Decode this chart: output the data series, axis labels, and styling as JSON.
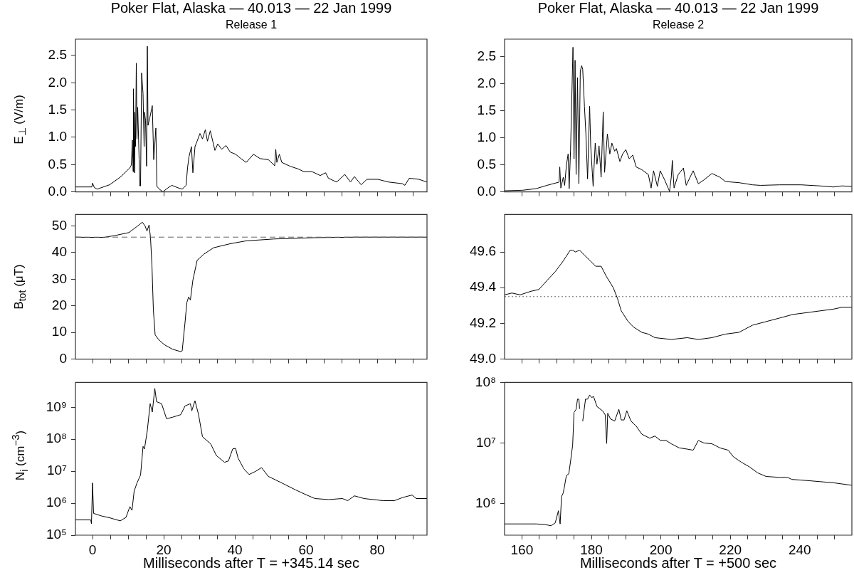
{
  "chart_data": [
    {
      "type": "line",
      "title": "Poker Flat, Alaska — 40.013 — 22 Jan 1999",
      "subtitle": "Release 1",
      "ylabel": "E$_{⊥}$ (V/m)",
      "color": "#000000",
      "marker": "none",
      "line_style": "solid",
      "grid": false,
      "tick_labels": "y",
      "xlim": [
        -4.8,
        94
      ],
      "xticks": [
        {
          "value": 0,
          "label": null
        },
        {
          "value": 5,
          "label": null
        },
        {
          "value": 10,
          "label": null
        },
        {
          "value": 15,
          "label": null
        },
        {
          "value": 20,
          "label": null
        },
        {
          "value": 25,
          "label": null
        },
        {
          "value": 30,
          "label": null
        },
        {
          "value": 35,
          "label": null
        },
        {
          "value": 40,
          "label": null
        },
        {
          "value": 45,
          "label": null
        },
        {
          "value": 50,
          "label": null
        },
        {
          "value": 55,
          "label": null
        },
        {
          "value": 60,
          "label": null
        },
        {
          "value": 65,
          "label": null
        },
        {
          "value": 70,
          "label": null
        },
        {
          "value": 75,
          "label": null
        },
        {
          "value": 80,
          "label": null
        },
        {
          "value": 85,
          "label": null
        },
        {
          "value": 90,
          "label": null
        }
      ],
      "ylim": [
        0,
        2.8
      ],
      "yticks": [
        {
          "value": 0,
          "label": "0.0"
        },
        0.5,
        {
          "value": 1,
          "label": "1.0"
        },
        1.5,
        {
          "value": 2,
          "label": "2.0"
        },
        2.5
      ],
      "x": [
        -4.8,
        -0.2,
        0,
        0.5,
        1.3,
        4.8,
        7.8,
        10.5,
        10.9,
        11.2,
        11.4,
        11.5,
        11.8,
        11.9,
        12.1,
        12.3,
        12.5,
        12.7,
        13.1,
        13.3,
        13.5,
        13.8,
        14.2,
        14.5,
        14.6,
        14.9,
        15.2,
        15.4,
        15.6,
        16.1,
        16.8,
        17.2,
        17.8,
        18.1,
        18.8,
        19.8,
        20.9,
        22.3,
        23.8,
        25.2,
        26.3,
        26.7,
        27.1,
        27.8,
        28.2,
        28.8,
        29.4,
        30.2,
        30.9,
        31.7,
        32.3,
        33.1,
        34.4,
        35.2,
        36.3,
        37.5,
        38.7,
        40.2,
        41.7,
        43.2,
        45.2,
        47.1,
        49.4,
        51.2,
        51.5,
        51.8,
        52.5,
        53.2,
        55.5,
        57.8,
        59.4,
        61.7,
        64,
        65.5,
        66.3,
        68.6,
        70.9,
        72.5,
        73.6,
        75.5,
        77.1,
        80.2,
        83.2,
        87.1,
        87.8,
        89,
        91.7,
        94
      ],
      "values": [
        0.09,
        0.09,
        0.16,
        0.08,
        0.05,
        0.13,
        0.27,
        0.44,
        0.49,
        0.95,
        0.37,
        1.89,
        0.35,
        1.46,
        0.83,
        2.36,
        0.97,
        1.55,
        0.59,
        0.11,
        0.11,
        2.18,
        1.8,
        0.83,
        1.46,
        1.31,
        0.47,
        2.67,
        1.22,
        1.36,
        1.58,
        0.59,
        1.17,
        0.1,
        0.05,
        0,
        0.06,
        0.12,
        0.08,
        0.05,
        0.12,
        0.44,
        0.64,
        0.83,
        0.35,
        0.83,
        0.93,
        1.07,
        0.97,
        1.14,
        0.93,
        1.12,
        0.76,
        0.88,
        0.78,
        0.85,
        0.73,
        0.69,
        0.61,
        0.54,
        0.69,
        0.61,
        0.59,
        0.48,
        0.78,
        0.54,
        0.69,
        0.54,
        0.47,
        0.42,
        0.37,
        0.37,
        0.3,
        0.35,
        0.25,
        0.18,
        0.32,
        0.18,
        0.28,
        0.13,
        0.23,
        0.23,
        0.18,
        0.15,
        0.12,
        0.25,
        0.23,
        0.18
      ]
    },
    {
      "type": "line",
      "title": "Poker Flat, Alaska — 40.013 — 22 Jan 1999",
      "subtitle": "Release 2",
      "color": "#000000",
      "marker": "none",
      "line_style": "solid",
      "grid": false,
      "tick_labels": "y",
      "xlim": [
        155,
        255
      ],
      "xticks": [
        {
          "value": 160,
          "label": null
        },
        {
          "value": 165,
          "label": null
        },
        {
          "value": 170,
          "label": null
        },
        {
          "value": 175,
          "label": null
        },
        {
          "value": 180,
          "label": null
        },
        {
          "value": 185,
          "label": null
        },
        {
          "value": 190,
          "label": null
        },
        {
          "value": 195,
          "label": null
        },
        {
          "value": 200,
          "label": null
        },
        {
          "value": 205,
          "label": null
        },
        {
          "value": 210,
          "label": null
        },
        {
          "value": 215,
          "label": null
        },
        {
          "value": 220,
          "label": null
        },
        {
          "value": 225,
          "label": null
        },
        {
          "value": 230,
          "label": null
        },
        {
          "value": 235,
          "label": null
        },
        {
          "value": 240,
          "label": null
        },
        {
          "value": 245,
          "label": null
        },
        {
          "value": 250,
          "label": null
        }
      ],
      "ylim": [
        0,
        2.82
      ],
      "yticks": [
        {
          "value": 0,
          "label": "0.0"
        },
        0.5,
        {
          "value": 1,
          "label": "1.0"
        },
        1.5,
        {
          "value": 2,
          "label": "2.0"
        },
        2.5
      ],
      "x": [
        155,
        160.2,
        164.1,
        167.2,
        170.7,
        170.9,
        171.2,
        171.9,
        172.3,
        172.8,
        173.3,
        173.6,
        174,
        174.7,
        175,
        175.3,
        175.6,
        176,
        176.4,
        176.8,
        177.2,
        177.5,
        178,
        178.4,
        178.9,
        179.5,
        179.8,
        180.5,
        181.1,
        181.6,
        182.2,
        182.8,
        183.4,
        183.8,
        184.6,
        185.3,
        185.9,
        186.7,
        187.2,
        188.2,
        189,
        189.9,
        190.9,
        191.9,
        192.9,
        194.5,
        196.4,
        197.2,
        197.9,
        199,
        199.8,
        201.1,
        202.1,
        202.5,
        203,
        203.3,
        203.8,
        205,
        206.5,
        207.3,
        209.3,
        210.8,
        212.4,
        214.7,
        217,
        218.6,
        222.5,
        226.4,
        228.7,
        234.2,
        240.4,
        245.8,
        249.7,
        252.1,
        255
      ],
      "values": [
        0.02,
        0.03,
        0.06,
        0.12,
        0.18,
        0.46,
        0.07,
        0.27,
        0.12,
        0.49,
        0.7,
        0.06,
        0.78,
        2.67,
        0.61,
        2.43,
        0.32,
        2.11,
        0.15,
        2.23,
        2.33,
        2.26,
        1.58,
        1.09,
        0.24,
        1.58,
        0.85,
        0.1,
        0.9,
        0.51,
        0.85,
        0.27,
        1.48,
        0.36,
        1.07,
        0.7,
        0.9,
        0.75,
        0.8,
        0.56,
        0.7,
        0.78,
        0.61,
        0.68,
        0.46,
        0.41,
        0.32,
        0.07,
        0.39,
        0.1,
        0.39,
        0.22,
        0.07,
        0.01,
        0.27,
        0.58,
        0.07,
        0.32,
        0.44,
        0.12,
        0.39,
        0.15,
        0.22,
        0.34,
        0.27,
        0.19,
        0.17,
        0.13,
        0.12,
        0.13,
        0.13,
        0.11,
        0.09,
        0.11,
        0.1
      ]
    },
    {
      "type": "line",
      "ylabel": "B$_{tot}$ (μT)",
      "color": "#000000",
      "marker": "none",
      "line_style": "solid",
      "grid": false,
      "tick_labels": "y",
      "xlim": [
        -4.8,
        94
      ],
      "xticks": [
        {
          "value": 0,
          "label": null
        },
        {
          "value": 5,
          "label": null
        },
        {
          "value": 10,
          "label": null
        },
        {
          "value": 15,
          "label": null
        },
        {
          "value": 20,
          "label": null
        },
        {
          "value": 25,
          "label": null
        },
        {
          "value": 30,
          "label": null
        },
        {
          "value": 35,
          "label": null
        },
        {
          "value": 40,
          "label": null
        },
        {
          "value": 45,
          "label": null
        },
        {
          "value": 50,
          "label": null
        },
        {
          "value": 55,
          "label": null
        },
        {
          "value": 60,
          "label": null
        },
        {
          "value": 65,
          "label": null
        },
        {
          "value": 70,
          "label": null
        },
        {
          "value": 75,
          "label": null
        },
        {
          "value": 80,
          "label": null
        },
        {
          "value": 85,
          "label": null
        },
        {
          "value": 90,
          "label": null
        }
      ],
      "ylim": [
        0,
        54.3
      ],
      "yticks": [
        0,
        10,
        20,
        30,
        40,
        50
      ],
      "ref_lines": [
        {
          "axis": "y",
          "value": 45.8,
          "color": "#666666",
          "line_style": "dashed"
        }
      ],
      "x": [
        -4.8,
        0.2,
        3.2,
        6.3,
        10.2,
        12.5,
        14,
        14.8,
        15.3,
        15.9,
        16.3,
        16.7,
        17.1,
        17.6,
        18.6,
        20.2,
        22.5,
        24.8,
        25.2,
        26,
        26.5,
        27,
        27.5,
        28.2,
        29.4,
        31.3,
        34,
        38.6,
        43.2,
        50.9,
        62.5,
        74,
        94
      ],
      "values": [
        45.8,
        45.7,
        45.7,
        46.4,
        47.5,
        49.8,
        51.4,
        49.9,
        48.1,
        50.4,
        45.5,
        35.2,
        18.5,
        9.1,
        7.3,
        5.4,
        3.7,
        2.8,
        3.1,
        13.8,
        21.2,
        23.3,
        22.2,
        29.6,
        37.1,
        39.4,
        41.8,
        43.3,
        44.4,
        45.1,
        45.6,
        45.8,
        45.8
      ]
    },
    {
      "type": "line",
      "color": "#000000",
      "marker": "none",
      "line_style": "solid",
      "grid": false,
      "tick_labels": "y",
      "xlim": [
        155,
        255
      ],
      "xticks": [
        {
          "value": 160,
          "label": null
        },
        {
          "value": 165,
          "label": null
        },
        {
          "value": 170,
          "label": null
        },
        {
          "value": 175,
          "label": null
        },
        {
          "value": 180,
          "label": null
        },
        {
          "value": 185,
          "label": null
        },
        {
          "value": 190,
          "label": null
        },
        {
          "value": 195,
          "label": null
        },
        {
          "value": 200,
          "label": null
        },
        {
          "value": 205,
          "label": null
        },
        {
          "value": 210,
          "label": null
        },
        {
          "value": 215,
          "label": null
        },
        {
          "value": 220,
          "label": null
        },
        {
          "value": 225,
          "label": null
        },
        {
          "value": 230,
          "label": null
        },
        {
          "value": 235,
          "label": null
        },
        {
          "value": 240,
          "label": null
        },
        {
          "value": 245,
          "label": null
        },
        {
          "value": 250,
          "label": null
        }
      ],
      "ylim": [
        49.0,
        49.81
      ],
      "yticks": [
        {
          "value": 49,
          "label": "49.0"
        },
        49.2,
        49.4,
        49.6
      ],
      "ref_lines": [
        {
          "axis": "y",
          "value": 49.35,
          "color": "#666666",
          "line_style": "dotted"
        }
      ],
      "x": [
        155,
        157.1,
        159.5,
        162.6,
        164.9,
        167.2,
        169.6,
        171.9,
        173.9,
        174.6,
        175.4,
        176.6,
        178.1,
        179.7,
        181.2,
        182.8,
        184.4,
        186.3,
        187.5,
        188.6,
        190.6,
        192.1,
        194.5,
        196.4,
        198.3,
        203,
        207.6,
        210.8,
        214.7,
        218.6,
        222.5,
        226.4,
        230.3,
        234.2,
        238,
        241.9,
        245.8,
        249.7,
        252.1,
        255
      ],
      "values": [
        49.36,
        49.37,
        49.36,
        49.38,
        49.39,
        49.44,
        49.49,
        49.55,
        49.61,
        49.61,
        49.6,
        49.61,
        49.58,
        49.55,
        49.52,
        49.52,
        49.46,
        49.4,
        49.34,
        49.27,
        49.21,
        49.18,
        49.15,
        49.14,
        49.12,
        49.11,
        49.12,
        49.11,
        49.12,
        49.14,
        49.15,
        49.19,
        49.21,
        49.23,
        49.25,
        49.26,
        49.27,
        49.28,
        49.29,
        49.29
      ]
    },
    {
      "type": "line",
      "ylabel": "N$_{i}$ (cm$^{−3}$)",
      "xlabel": "Milliseconds after T = +345.14 sec",
      "color": "#000000",
      "marker": "none",
      "line_style": "solid",
      "grid": false,
      "log": "y",
      "xlim": [
        -4.8,
        94
      ],
      "xticks": [
        0,
        {
          "value": 5,
          "label": null
        },
        {
          "value": 10,
          "label": null
        },
        {
          "value": 15,
          "label": null
        },
        20,
        {
          "value": 25,
          "label": null
        },
        {
          "value": 30,
          "label": null
        },
        {
          "value": 35,
          "label": null
        },
        40,
        {
          "value": 45,
          "label": null
        },
        {
          "value": 50,
          "label": null
        },
        {
          "value": 55,
          "label": null
        },
        60,
        {
          "value": 65,
          "label": null
        },
        {
          "value": 70,
          "label": null
        },
        {
          "value": 75,
          "label": null
        },
        80,
        {
          "value": 85,
          "label": null
        },
        {
          "value": 90,
          "label": null
        }
      ],
      "ylim": [
        100000,
        6000000000
      ],
      "yticks": [
        {
          "value": 100000,
          "label": "10⁵"
        },
        {
          "value": 1000000,
          "label": "10⁶"
        },
        {
          "value": 10000000,
          "label": "10⁷"
        },
        {
          "value": 100000000,
          "label": "10⁸"
        },
        {
          "value": 1000000000,
          "label": "10⁹"
        }
      ],
      "x": [
        -4.8,
        -0.5,
        -0.3,
        0,
        0.3,
        2.5,
        4.8,
        7.8,
        9.4,
        10.5,
        11.1,
        11.7,
        12.5,
        13.5,
        14.2,
        14.6,
        15.4,
        16.2,
        16.8,
        17.5,
        18,
        19.4,
        20.8,
        22.5,
        24.8,
        26,
        27.5,
        27.9,
        28.8,
        29.8,
        30.9,
        33.2,
        34.8,
        37.1,
        38.2,
        39.4,
        40.2,
        40.9,
        42.5,
        44,
        45.9,
        47.5,
        49.4,
        53.2,
        57.1,
        60.2,
        62.5,
        66.3,
        70.2,
        71.7,
        73.6,
        76.3,
        81.7,
        84.8,
        87.1,
        89.8,
        91,
        94
      ],
      "values": [
        300000,
        300000,
        230000,
        4300000,
        480000,
        400000,
        350000,
        280000,
        360000,
        780000,
        600000,
        2400000,
        4300000,
        7600000,
        60000000,
        50000000,
        190000000,
        1300000000,
        710000000,
        3900000000,
        1500000000,
        1300000000,
        440000000,
        490000000,
        590000000,
        1100000000,
        1300000000,
        780000000,
        1600000000,
        590000000,
        120000000,
        72000000,
        31000000,
        19000000,
        21000000,
        50000000,
        52000000,
        26000000,
        12000000,
        7900000,
        10000000,
        13000000,
        6900000,
        4300000,
        2600000,
        1800000,
        1400000,
        1300000,
        1400000,
        1200000,
        1700000,
        1400000,
        1200000,
        1200000,
        1500000,
        1800000,
        1400000,
        1400000
      ]
    },
    {
      "type": "line",
      "xlabel": "Milliseconds after T = +500 sec",
      "color": "#000000",
      "marker": "none",
      "line_style": "solid",
      "grid": false,
      "log": "y",
      "xlim": [
        155,
        255
      ],
      "xticks": [
        160,
        {
          "value": 165,
          "label": null
        },
        {
          "value": 170,
          "label": null
        },
        {
          "value": 175,
          "label": null
        },
        180,
        {
          "value": 185,
          "label": null
        },
        {
          "value": 190,
          "label": null
        },
        {
          "value": 195,
          "label": null
        },
        200,
        {
          "value": 205,
          "label": null
        },
        {
          "value": 210,
          "label": null
        },
        {
          "value": 215,
          "label": null
        },
        220,
        {
          "value": 225,
          "label": null
        },
        {
          "value": 230,
          "label": null
        },
        {
          "value": 235,
          "label": null
        },
        240,
        {
          "value": 245,
          "label": null
        },
        {
          "value": 250,
          "label": null
        }
      ],
      "ylim": [
        300000,
        100000000
      ],
      "yticks": [
        {
          "value": 1000000,
          "label": "10⁶"
        },
        {
          "value": 10000000,
          "label": "10⁷"
        },
        {
          "value": 100000000,
          "label": "10⁸"
        }
      ],
      "x": [
        155,
        164.1,
        166.5,
        168.4,
        169.6,
        170.5,
        170.8,
        171,
        171.4,
        171.9,
        172.3,
        172.8,
        173.5,
        174,
        174.6,
        175,
        175.6,
        176,
        176.4,
        176.6,
        177,
        177.5,
        178.3,
        178.9,
        179.5,
        180.1,
        180.6,
        181.6,
        183.2,
        184,
        184.4,
        184.7,
        185.5,
        186.7,
        187.9,
        188.6,
        189.4,
        190.2,
        191.4,
        192.9,
        194.5,
        196.8,
        198.3,
        199.9,
        201.5,
        203,
        205.3,
        207.7,
        209.3,
        210.8,
        212.4,
        214.7,
        217,
        219.4,
        220.9,
        223.2,
        225.6,
        227.9,
        230.3,
        234.2,
        236.5,
        237.7,
        241.9,
        245.8,
        249.7,
        255
      ],
      "values": [
        460000,
        460000,
        450000,
        430000,
        480000,
        760000,
        560000,
        460000,
        1300000,
        1500000,
        2000000,
        2900000,
        3100000,
        5000000,
        9200000,
        32000000,
        36000000,
        53000000,
        53000000,
        37000000,
        null,
        23000000,
        53000000,
        53000000,
        62000000,
        56000000,
        59000000,
        40000000,
        34000000,
        29000000,
        9800000,
        31000000,
        25000000,
        23000000,
        36000000,
        24000000,
        24000000,
        34000000,
        23000000,
        19000000,
        14000000,
        12000000,
        13000000,
        11000000,
        11000000,
        9700000,
        8300000,
        7900000,
        7600000,
        11000000,
        10000000,
        9700000,
        8300000,
        7600000,
        5900000,
        4800000,
        4000000,
        3200000,
        2800000,
        2700000,
        2700000,
        2500000,
        2400000,
        2300000,
        2200000,
        2000000
      ]
    }
  ]
}
